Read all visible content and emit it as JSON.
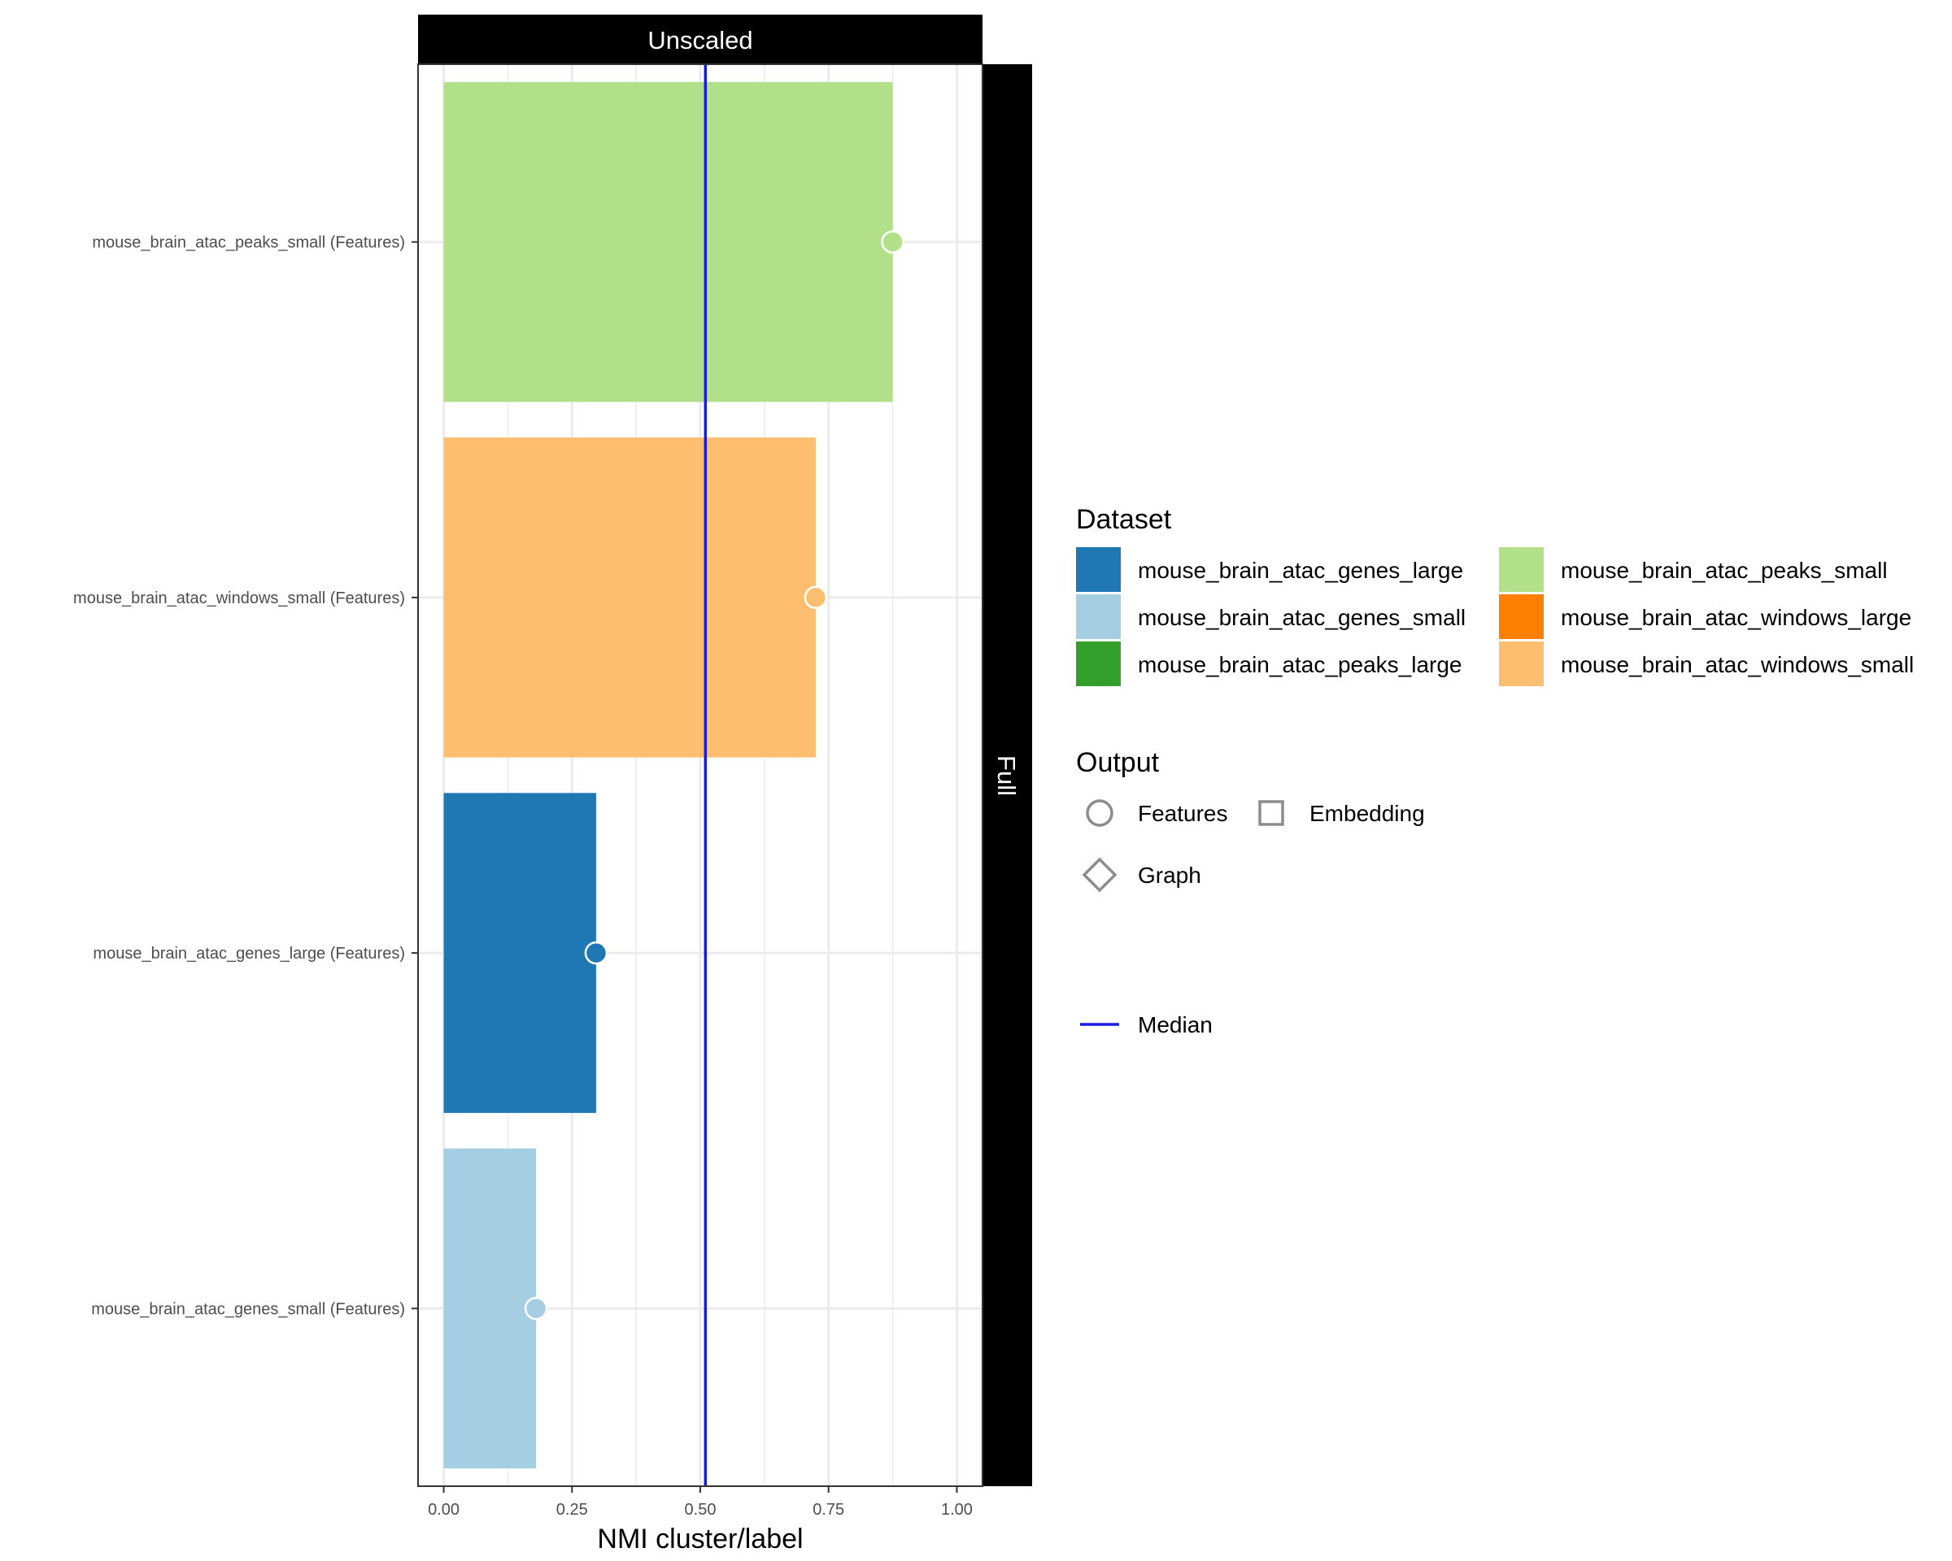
{
  "chart_data": {
    "type": "bar",
    "orientation": "horizontal",
    "facet_column": "Unscaled",
    "facet_row": "Full",
    "xlabel": "NMI cluster/label",
    "ylabel": "",
    "xlim": [
      -0.05,
      1.05
    ],
    "x_ticks": [
      "0.00",
      "0.25",
      "0.50",
      "0.75",
      "1.00"
    ],
    "median": 0.51,
    "grid": true,
    "categories": [
      "mouse_brain_atac_peaks_small (Features)",
      "mouse_brain_atac_windows_small (Features)",
      "mouse_brain_atac_genes_large (Features)",
      "mouse_brain_atac_genes_small (Features)"
    ],
    "values": [
      0.875,
      0.725,
      0.297,
      0.18
    ],
    "dataset": [
      "mouse_brain_atac_peaks_small",
      "mouse_brain_atac_windows_small",
      "mouse_brain_atac_genes_large",
      "mouse_brain_atac_genes_small"
    ],
    "output": [
      "Features",
      "Features",
      "Features",
      "Features"
    ],
    "legend_placement": "right"
  },
  "legend": {
    "dataset_title": "Dataset",
    "datasets": [
      {
        "name": "mouse_brain_atac_genes_large",
        "color": "#1f78b4"
      },
      {
        "name": "mouse_brain_atac_genes_small",
        "color": "#a6cee3"
      },
      {
        "name": "mouse_brain_atac_peaks_large",
        "color": "#33a02c"
      },
      {
        "name": "mouse_brain_atac_peaks_small",
        "color": "#b2df8a"
      },
      {
        "name": "mouse_brain_atac_windows_large",
        "color": "#ff7f00"
      },
      {
        "name": "mouse_brain_atac_windows_small",
        "color": "#fdbf6f"
      }
    ],
    "output_title": "Output",
    "outputs": [
      {
        "name": "Features",
        "shape": "circle"
      },
      {
        "name": "Embedding",
        "shape": "square"
      },
      {
        "name": "Graph",
        "shape": "diamond"
      }
    ],
    "median_label": "Median",
    "median_color": "#1a1ae6"
  }
}
